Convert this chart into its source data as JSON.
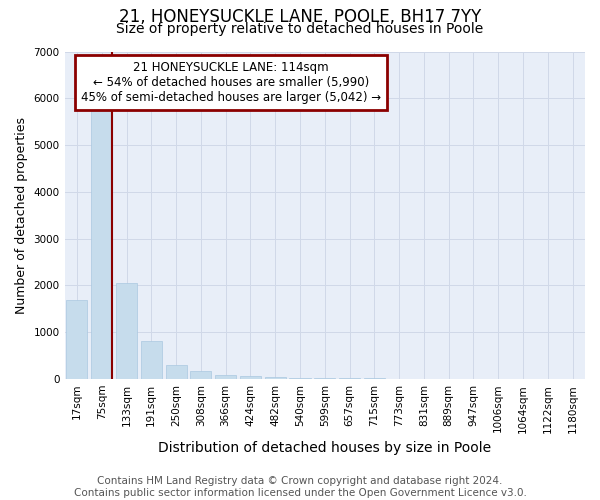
{
  "title": "21, HONEYSUCKLE LANE, POOLE, BH17 7YY",
  "subtitle": "Size of property relative to detached houses in Poole",
  "xlabel": "Distribution of detached houses by size in Poole",
  "ylabel": "Number of detached properties",
  "footer_line1": "Contains HM Land Registry data © Crown copyright and database right 2024.",
  "footer_line2": "Contains public sector information licensed under the Open Government Licence v3.0.",
  "categories": [
    "17sqm",
    "75sqm",
    "133sqm",
    "191sqm",
    "250sqm",
    "308sqm",
    "366sqm",
    "424sqm",
    "482sqm",
    "540sqm",
    "599sqm",
    "657sqm",
    "715sqm",
    "773sqm",
    "831sqm",
    "889sqm",
    "947sqm",
    "1006sqm",
    "1064sqm",
    "1122sqm",
    "1180sqm"
  ],
  "values": [
    1700,
    5750,
    2050,
    820,
    290,
    170,
    80,
    55,
    40,
    30,
    25,
    20,
    18,
    5,
    4,
    3,
    2,
    2,
    1,
    1,
    1
  ],
  "bar_color": "#c6dcec",
  "bar_edge_color": "#aac8e0",
  "property_line_color": "#8b0000",
  "property_line_x": 1.42,
  "annotation_line1": "21 HONEYSUCKLE LANE: 114sqm",
  "annotation_line2": "← 54% of detached houses are smaller (5,990)",
  "annotation_line3": "45% of semi-detached houses are larger (5,042) →",
  "annotation_box_color": "#8b0000",
  "ylim": [
    0,
    7000
  ],
  "yticks": [
    0,
    1000,
    2000,
    3000,
    4000,
    5000,
    6000,
    7000
  ],
  "grid_color": "#d0d8e8",
  "background_color": "#ffffff",
  "plot_bg_color": "#e8eef8",
  "title_fontsize": 12,
  "subtitle_fontsize": 10,
  "xlabel_fontsize": 10,
  "ylabel_fontsize": 9,
  "tick_fontsize": 7.5,
  "annotation_fontsize": 8.5,
  "footer_fontsize": 7.5
}
